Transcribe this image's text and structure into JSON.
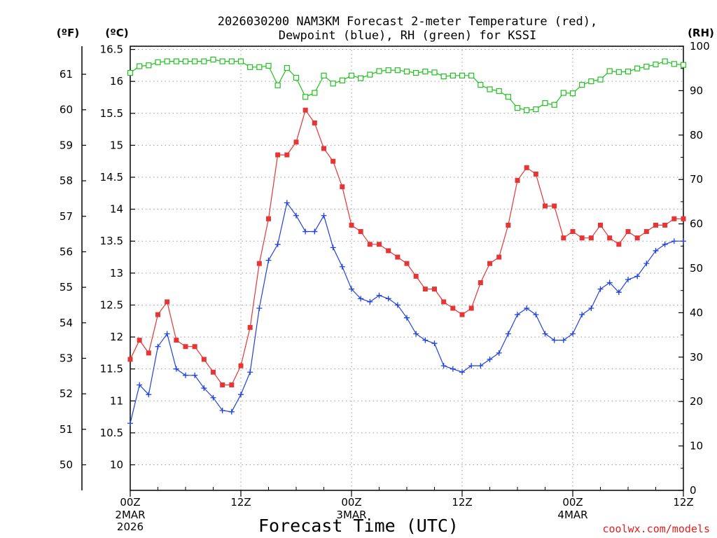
{
  "chart_data": {
    "type": "line",
    "title_line1": "2026030200 NAM3KM Forecast 2-meter Temperature (red),",
    "title_line2": "Dewpoint (blue), RH (green) for KSSI",
    "xlabel": "Forecast Time (UTC)",
    "credit": "coolwx.com/models",
    "left_unit_f": "(ºF)",
    "left_unit_c": "(ºC)",
    "right_unit": "(RH)",
    "x_range": [
      0,
      60
    ],
    "c_range": [
      9.6,
      16.55
    ],
    "rh_range": [
      0,
      100
    ],
    "fahrenheit_ticks": [
      "50",
      "51",
      "52",
      "53",
      "54",
      "55",
      "56",
      "57",
      "58",
      "59",
      "60",
      "61"
    ],
    "celsius_ticks": [
      "10",
      "10.5",
      "11",
      "11.5",
      "12",
      "12.5",
      "13",
      "13.5",
      "14",
      "14.5",
      "15",
      "15.5",
      "16",
      "16.5"
    ],
    "rh_ticks": [
      "0",
      "10",
      "20",
      "30",
      "40",
      "50",
      "60",
      "70",
      "80",
      "90",
      "100"
    ],
    "x_ticks": [
      {
        "hour": 0,
        "label": "00Z",
        "sub1": "2MAR",
        "sub2": "2026"
      },
      {
        "hour": 12,
        "label": "12Z",
        "sub1": "",
        "sub2": ""
      },
      {
        "hour": 24,
        "label": "00Z",
        "sub1": "3MAR",
        "sub2": ""
      },
      {
        "hour": 36,
        "label": "12Z",
        "sub1": "",
        "sub2": ""
      },
      {
        "hour": 48,
        "label": "00Z",
        "sub1": "4MAR",
        "sub2": ""
      },
      {
        "hour": 60,
        "label": "12Z",
        "sub1": "",
        "sub2": ""
      }
    ],
    "series": [
      {
        "name": "Temperature",
        "color": "#e53535",
        "marker": "square-filled",
        "axis": "celsius",
        "values": [
          11.65,
          11.95,
          11.75,
          12.35,
          12.55,
          11.95,
          11.85,
          11.85,
          11.65,
          11.45,
          11.25,
          11.25,
          11.55,
          12.15,
          13.15,
          13.85,
          14.85,
          14.85,
          15.05,
          15.55,
          15.35,
          14.95,
          14.75,
          14.35,
          13.75,
          13.65,
          13.45,
          13.45,
          13.35,
          13.25,
          13.15,
          12.95,
          12.75,
          12.75,
          12.55,
          12.45,
          12.35,
          12.45,
          12.85,
          13.15,
          13.25,
          13.75,
          14.45,
          14.65,
          14.55,
          14.05,
          14.05,
          13.55,
          13.65,
          13.55,
          13.55,
          13.75,
          13.55,
          13.45,
          13.65,
          13.55,
          13.65,
          13.75,
          13.75,
          13.85,
          13.85
        ]
      },
      {
        "name": "Dewpoint",
        "color": "#2040e0",
        "marker": "plus",
        "axis": "celsius",
        "values": [
          10.65,
          11.25,
          11.1,
          11.85,
          12.05,
          11.5,
          11.4,
          11.4,
          11.2,
          11.05,
          10.85,
          10.83,
          11.1,
          11.45,
          12.45,
          13.2,
          13.45,
          14.1,
          13.9,
          13.65,
          13.65,
          13.9,
          13.4,
          13.1,
          12.75,
          12.6,
          12.55,
          12.65,
          12.6,
          12.5,
          12.3,
          12.05,
          11.95,
          11.9,
          11.55,
          11.5,
          11.45,
          11.55,
          11.55,
          11.65,
          11.75,
          12.05,
          12.35,
          12.45,
          12.35,
          12.05,
          11.95,
          11.95,
          12.05,
          12.35,
          12.45,
          12.75,
          12.85,
          12.7,
          12.9,
          12.95,
          13.15,
          13.35,
          13.45,
          13.5,
          13.5
        ]
      },
      {
        "name": "RH",
        "color": "#20c020",
        "marker": "square-open",
        "axis": "rh",
        "values": [
          94,
          95.5,
          95.7,
          96.4,
          96.6,
          96.6,
          96.6,
          96.6,
          96.6,
          97,
          96.6,
          96.6,
          96.6,
          95.3,
          95.3,
          95.6,
          91.2,
          95.1,
          92.9,
          88.6,
          89.5,
          93.4,
          91.6,
          92.3,
          93.4,
          92.8,
          93.6,
          94.4,
          94.6,
          94.6,
          94.3,
          94,
          94.3,
          94.1,
          93.2,
          93.4,
          93.4,
          93.4,
          91.3,
          90.3,
          89.9,
          88.6,
          86.1,
          85.6,
          85.8,
          87.2,
          86.8,
          89.5,
          89.4,
          91.3,
          92.1,
          92.5,
          94.4,
          94.2,
          94.3,
          95,
          95.4,
          95.9,
          96.6,
          96,
          95.8
        ]
      }
    ]
  }
}
